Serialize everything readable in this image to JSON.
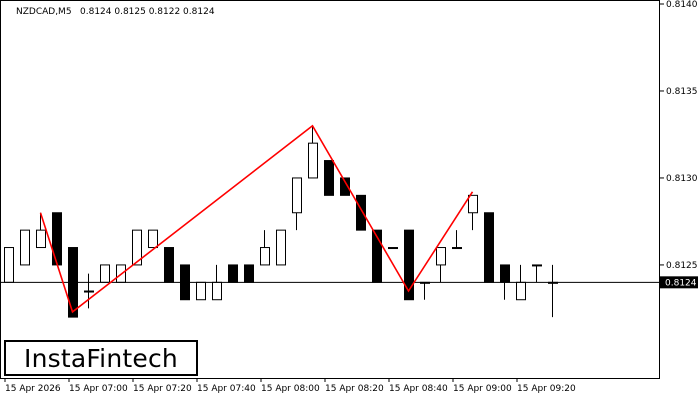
{
  "chart_data": {
    "type": "candlestick",
    "symbol": "NZDCAD,M5",
    "ohlc_header": "0.8124 0.8125 0.8122 0.8124",
    "current_price": "0.8124",
    "ylim": [
      0.81185,
      0.814
    ],
    "y_ticks": [
      "0.8125",
      "0.8130",
      "0.8135",
      "0.8140"
    ],
    "x_ticks": [
      {
        "label": "15 Apr 2026",
        "index": 0
      },
      {
        "label": "15 Apr 07:00",
        "index": 4
      },
      {
        "label": "15 Apr 07:20",
        "index": 8
      },
      {
        "label": "15 Apr 07:40",
        "index": 12
      },
      {
        "label": "15 Apr 08:00",
        "index": 16
      },
      {
        "label": "15 Apr 08:20",
        "index": 20
      },
      {
        "label": "15 Apr 08:40",
        "index": 24
      },
      {
        "label": "15 Apr 09:00",
        "index": 28
      },
      {
        "label": "15 Apr 09:20",
        "index": 32
      }
    ],
    "candles": [
      {
        "o": 0.8124,
        "h": 0.8126,
        "l": 0.8124,
        "c": 0.8126
      },
      {
        "o": 0.8125,
        "h": 0.8127,
        "l": 0.8125,
        "c": 0.8127
      },
      {
        "o": 0.8126,
        "h": 0.8128,
        "l": 0.8126,
        "c": 0.8127
      },
      {
        "o": 0.8128,
        "h": 0.8128,
        "l": 0.8125,
        "c": 0.8125
      },
      {
        "o": 0.8126,
        "h": 0.8126,
        "l": 0.8122,
        "c": 0.8122
      },
      {
        "o": 0.81235,
        "h": 0.81245,
        "l": 0.81225,
        "c": 0.81235
      },
      {
        "o": 0.8124,
        "h": 0.8125,
        "l": 0.8124,
        "c": 0.8125
      },
      {
        "o": 0.8124,
        "h": 0.8125,
        "l": 0.8124,
        "c": 0.8125
      },
      {
        "o": 0.8125,
        "h": 0.8127,
        "l": 0.8125,
        "c": 0.8127
      },
      {
        "o": 0.8126,
        "h": 0.8127,
        "l": 0.8126,
        "c": 0.8127
      },
      {
        "o": 0.8126,
        "h": 0.8126,
        "l": 0.8124,
        "c": 0.8124
      },
      {
        "o": 0.8125,
        "h": 0.8125,
        "l": 0.8123,
        "c": 0.8123
      },
      {
        "o": 0.8123,
        "h": 0.8124,
        "l": 0.8123,
        "c": 0.8124
      },
      {
        "o": 0.8123,
        "h": 0.8125,
        "l": 0.8123,
        "c": 0.8124
      },
      {
        "o": 0.8125,
        "h": 0.8125,
        "l": 0.8124,
        "c": 0.8124
      },
      {
        "o": 0.8125,
        "h": 0.8125,
        "l": 0.8124,
        "c": 0.8124
      },
      {
        "o": 0.8125,
        "h": 0.8127,
        "l": 0.8125,
        "c": 0.8126
      },
      {
        "o": 0.8125,
        "h": 0.8127,
        "l": 0.8125,
        "c": 0.8127
      },
      {
        "o": 0.8128,
        "h": 0.813,
        "l": 0.8127,
        "c": 0.813
      },
      {
        "o": 0.813,
        "h": 0.8133,
        "l": 0.813,
        "c": 0.8132
      },
      {
        "o": 0.8131,
        "h": 0.8131,
        "l": 0.8129,
        "c": 0.8129
      },
      {
        "o": 0.813,
        "h": 0.813,
        "l": 0.8129,
        "c": 0.8129
      },
      {
        "o": 0.8129,
        "h": 0.8129,
        "l": 0.8127,
        "c": 0.8127
      },
      {
        "o": 0.8127,
        "h": 0.8127,
        "l": 0.8124,
        "c": 0.8124
      },
      {
        "o": 0.8126,
        "h": 0.8126,
        "l": 0.8126,
        "c": 0.8126
      },
      {
        "o": 0.8127,
        "h": 0.8127,
        "l": 0.8123,
        "c": 0.8123
      },
      {
        "o": 0.8124,
        "h": 0.8124,
        "l": 0.8123,
        "c": 0.8124
      },
      {
        "o": 0.8125,
        "h": 0.8126,
        "l": 0.8124,
        "c": 0.8126
      },
      {
        "o": 0.8126,
        "h": 0.8127,
        "l": 0.8126,
        "c": 0.8126
      },
      {
        "o": 0.8128,
        "h": 0.8129,
        "l": 0.8127,
        "c": 0.8129
      },
      {
        "o": 0.8128,
        "h": 0.8128,
        "l": 0.8124,
        "c": 0.8124
      },
      {
        "o": 0.8125,
        "h": 0.8125,
        "l": 0.8123,
        "c": 0.8124
      },
      {
        "o": 0.8123,
        "h": 0.8125,
        "l": 0.8123,
        "c": 0.8124
      },
      {
        "o": 0.8125,
        "h": 0.8125,
        "l": 0.8124,
        "c": 0.8125
      },
      {
        "o": 0.8124,
        "h": 0.8125,
        "l": 0.8122,
        "c": 0.8124
      }
    ],
    "pattern_points": [
      {
        "index": 2,
        "price": 0.8128
      },
      {
        "index": 4,
        "price": 0.81223
      },
      {
        "index": 19,
        "price": 0.8133
      },
      {
        "index": 25,
        "price": 0.81235
      },
      {
        "index": 29,
        "price": 0.81292
      }
    ],
    "colors": {
      "pattern_line": "#ff0000",
      "bull_body": "#ffffff",
      "bear_body": "#000000",
      "candle_outline": "#000000",
      "price_line": "#000000"
    }
  },
  "branding": {
    "logo_text": "InstaFintech"
  }
}
